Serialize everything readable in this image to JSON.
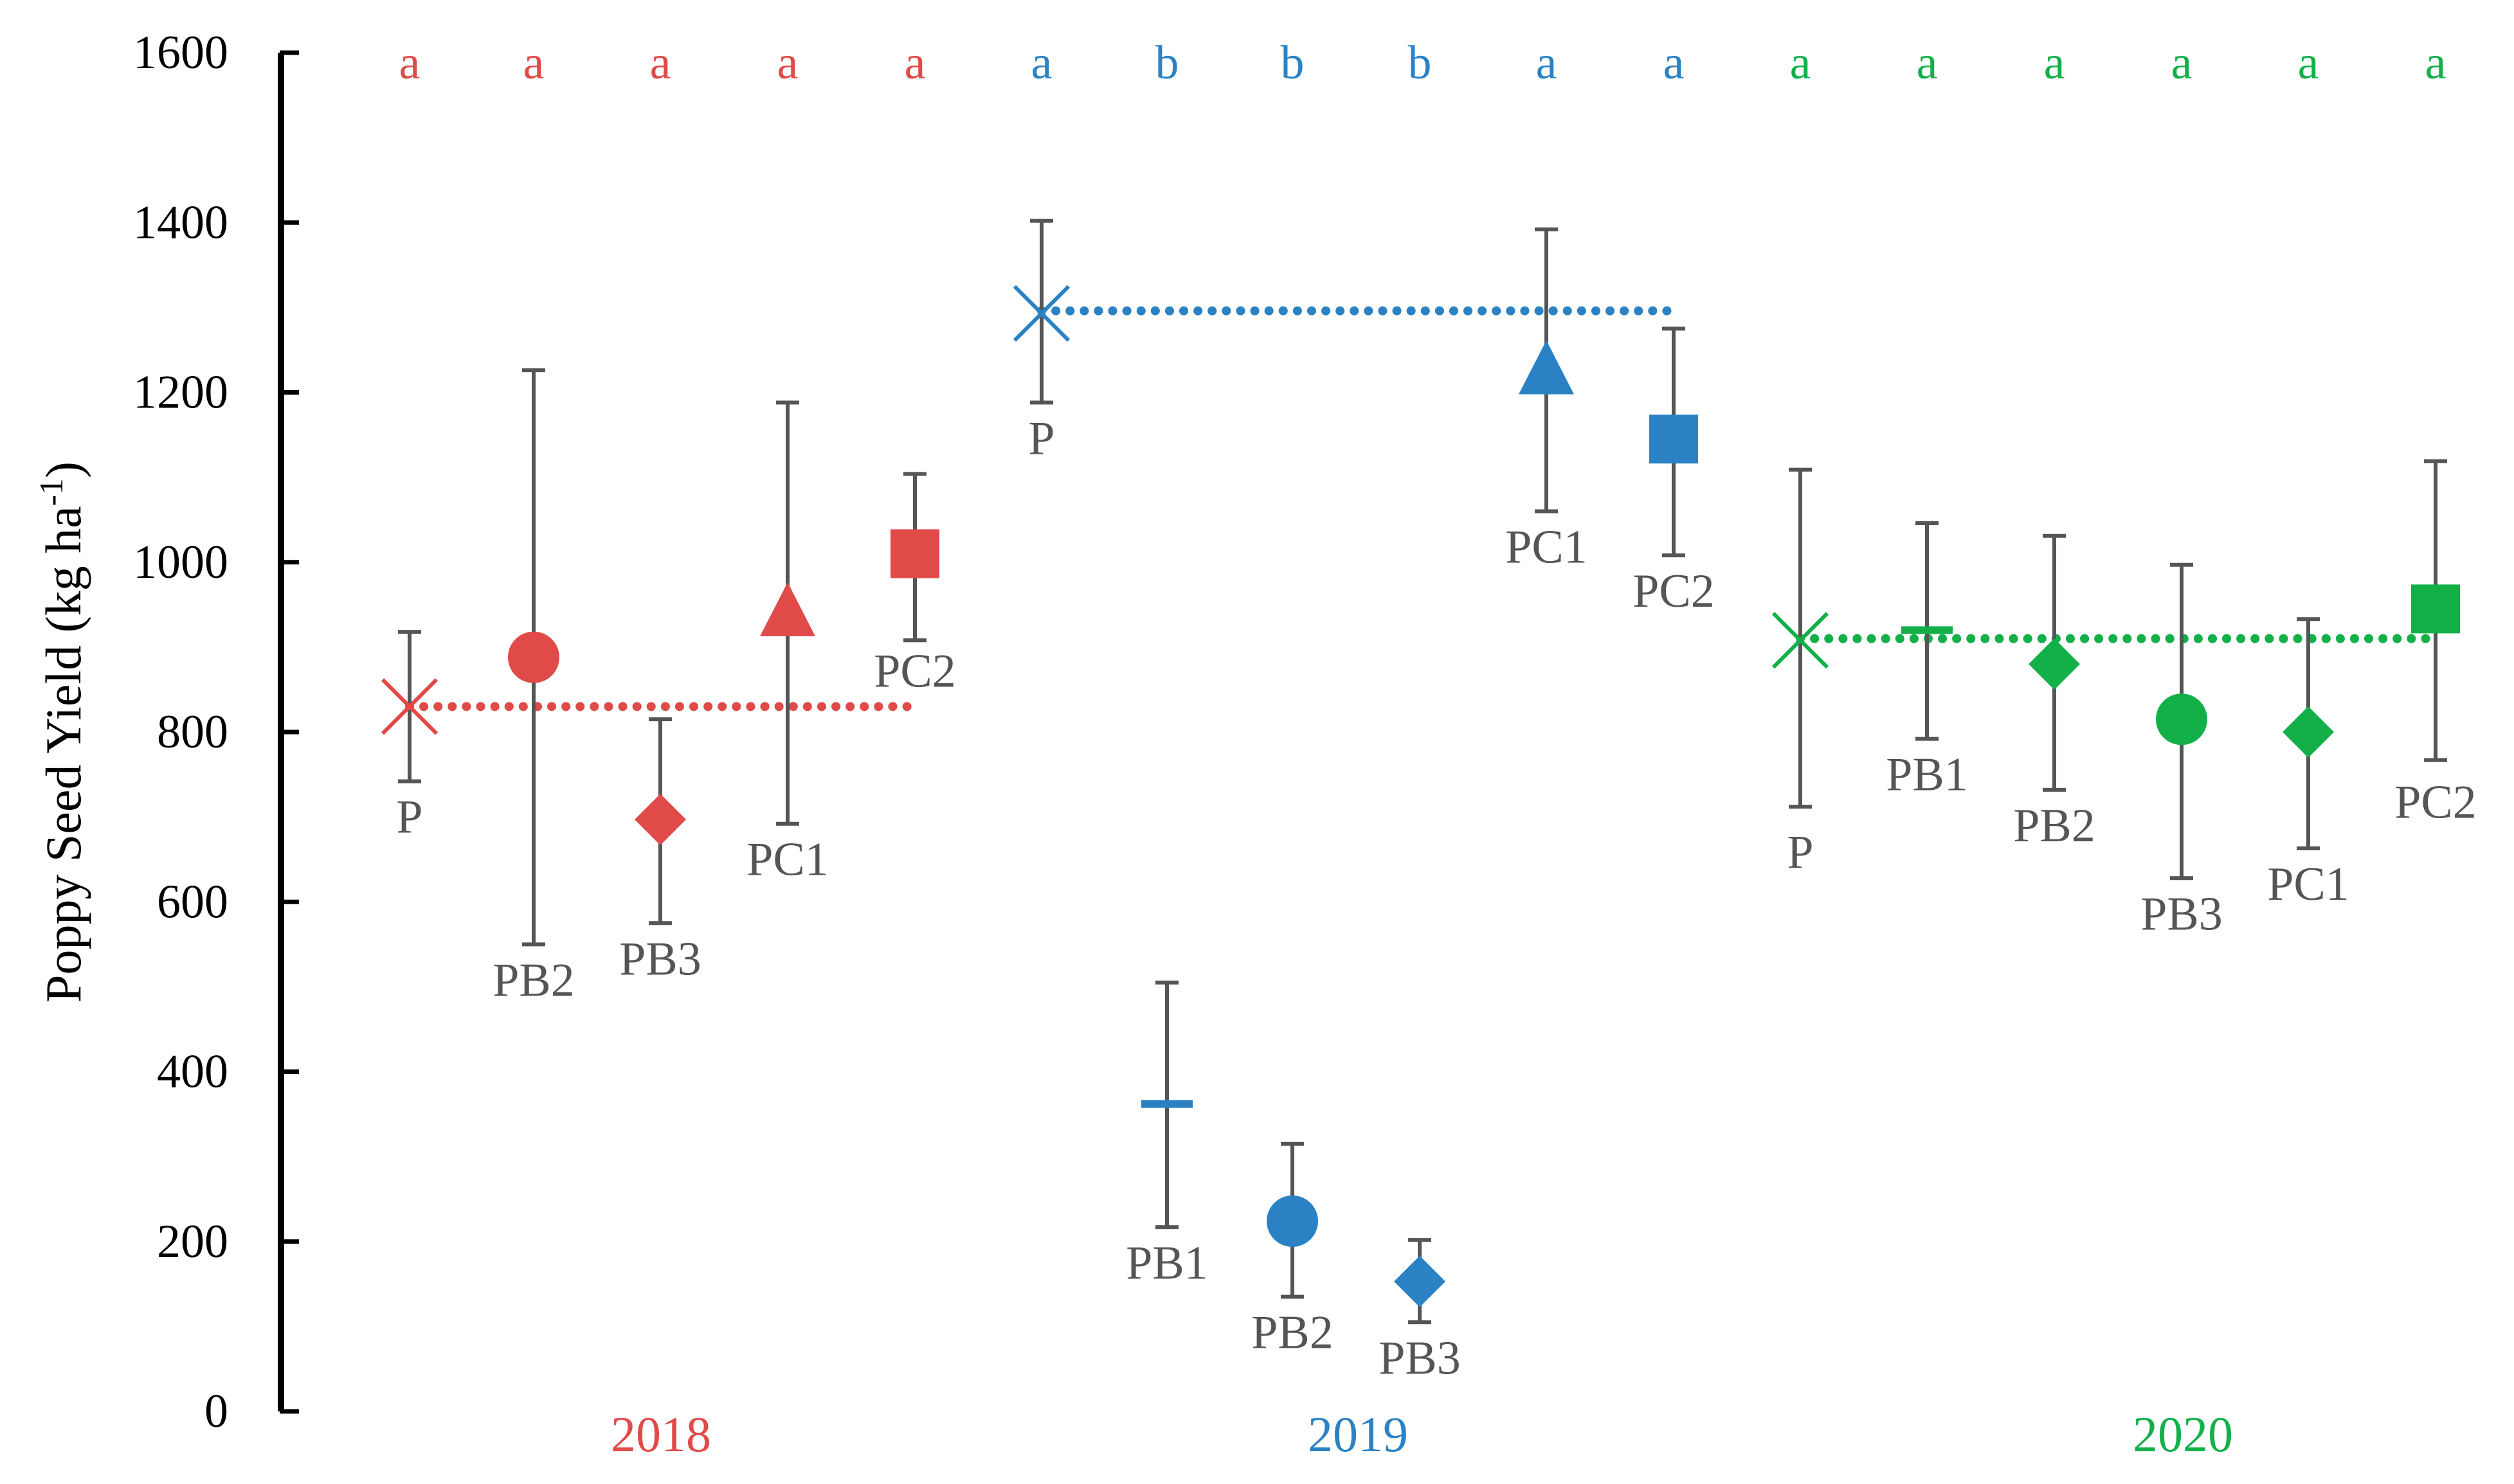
{
  "chart_data": {
    "type": "scatter",
    "title": "",
    "xlabel": "",
    "ylabel": "Poppy Seed Yield (kg ha",
    "ylabel_sup": "-1",
    "ylabel_close": ")",
    "ylim": [
      0,
      1600
    ],
    "yticks": [
      0,
      200,
      400,
      600,
      800,
      1000,
      1200,
      1400,
      1600
    ],
    "grid": false,
    "colors": {
      "2018": "#e04a48",
      "2019": "#2a82c4",
      "2020": "#13b04a",
      "error_bar": "#555555",
      "axis": "#000000"
    },
    "series": [
      {
        "name": "2018",
        "color": "#e04a48",
        "control_mean": 830,
        "points": [
          {
            "label": "P",
            "marker": "x",
            "y": 830,
            "y_low": 742,
            "y_high": 918,
            "letter": "a",
            "label_pos": "below"
          },
          {
            "label": "PB2",
            "marker": "circle",
            "y": 888,
            "y_low": 550,
            "y_high": 1226,
            "letter": "a",
            "label_pos": "below"
          },
          {
            "label": "PB3",
            "marker": "diamond",
            "y": 697,
            "y_low": 575,
            "y_high": 815,
            "letter": "a",
            "label_pos": "below"
          },
          {
            "label": "PC1",
            "marker": "triangle",
            "y": 940,
            "y_low": 692,
            "y_high": 1188,
            "letter": "a",
            "label_pos": "below"
          },
          {
            "label": "PC2",
            "marker": "square",
            "y": 1010,
            "y_low": 908,
            "y_high": 1104,
            "letter": "a",
            "label_pos": "below"
          }
        ]
      },
      {
        "name": "2019",
        "color": "#2a82c4",
        "control_mean": 1296,
        "points": [
          {
            "label": "P",
            "marker": "x",
            "y": 1293,
            "y_low": 1188,
            "y_high": 1402,
            "letter": "a",
            "label_pos": "below"
          },
          {
            "label": "PB1",
            "marker": "dash",
            "y": 362,
            "y_low": 217,
            "y_high": 505,
            "letter": "b",
            "label_pos": "below"
          },
          {
            "label": "PB2",
            "marker": "circle",
            "y": 224,
            "y_low": 135,
            "y_high": 315,
            "letter": "b",
            "label_pos": "below"
          },
          {
            "label": "PB3",
            "marker": "diamond",
            "y": 153,
            "y_low": 105,
            "y_high": 202,
            "letter": "b",
            "label_pos": "below"
          },
          {
            "label": "PC1",
            "marker": "triangle",
            "y": 1225,
            "y_low": 1060,
            "y_high": 1392,
            "letter": "a",
            "label_pos": "below"
          },
          {
            "label": "PC2",
            "marker": "square",
            "y": 1145,
            "y_low": 1008,
            "y_high": 1275,
            "letter": "a",
            "label_pos": "below"
          }
        ]
      },
      {
        "name": "2020",
        "color": "#13b04a",
        "control_mean": 910,
        "points": [
          {
            "label": "P",
            "marker": "x",
            "y": 908,
            "y_low": 712,
            "y_high": 1109,
            "letter": "a",
            "label_pos": "below"
          },
          {
            "label": "PB1",
            "marker": "dash",
            "y": 920,
            "y_low": 792,
            "y_high": 1046,
            "letter": "a",
            "label_pos": "below"
          },
          {
            "label": "PB2",
            "marker": "diamond",
            "y": 880,
            "y_low": 732,
            "y_high": 1031,
            "letter": "a",
            "label_pos": "below"
          },
          {
            "label": "PB3",
            "marker": "circle",
            "y": 815,
            "y_low": 628,
            "y_high": 997,
            "letter": "a",
            "label_pos": "below"
          },
          {
            "label": "PC1",
            "marker": "diamond",
            "y": 800,
            "y_low": 663,
            "y_high": 933,
            "letter": "a",
            "label_pos": "below"
          },
          {
            "label": "PC2",
            "marker": "square",
            "y": 945,
            "y_low": 767,
            "y_high": 1119,
            "letter": "a",
            "label_pos": "above"
          }
        ]
      }
    ]
  }
}
